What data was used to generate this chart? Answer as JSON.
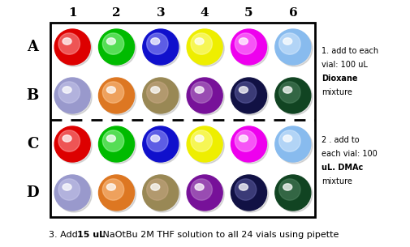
{
  "rows": [
    "A",
    "B",
    "C",
    "D"
  ],
  "cols": [
    "1",
    "2",
    "3",
    "4",
    "5",
    "6"
  ],
  "sphere_colors": {
    "A": [
      "#dd0000",
      "#00bb00",
      "#1010cc",
      "#eeee00",
      "#ee00ee",
      "#88bbee"
    ],
    "B": [
      "#9999cc",
      "#dd7722",
      "#998855",
      "#771199",
      "#111144",
      "#114422"
    ],
    "C": [
      "#dd0000",
      "#00bb00",
      "#1010cc",
      "#eeee00",
      "#ee00ee",
      "#88bbee"
    ],
    "D": [
      "#9999cc",
      "#dd7722",
      "#998855",
      "#771199",
      "#111144",
      "#114422"
    ]
  },
  "highlight_colors": {
    "A": [
      "#ffaaaa",
      "#aaffaa",
      "#aaaaff",
      "#ffffaa",
      "#ffaaff",
      "#ddeeff"
    ],
    "B": [
      "#ccccee",
      "#ffcc99",
      "#ccaa88",
      "#bb88cc",
      "#6666aa",
      "#558866"
    ],
    "C": [
      "#ffaaaa",
      "#aaffaa",
      "#aaaaff",
      "#ffffaa",
      "#ffaaff",
      "#ddeeff"
    ],
    "D": [
      "#ccccee",
      "#ffcc99",
      "#ccaa88",
      "#bb88cc",
      "#6666aa",
      "#558866"
    ]
  },
  "figwidth": 5.05,
  "figheight": 3.05,
  "dpi": 100,
  "bg_color": "#ffffff"
}
